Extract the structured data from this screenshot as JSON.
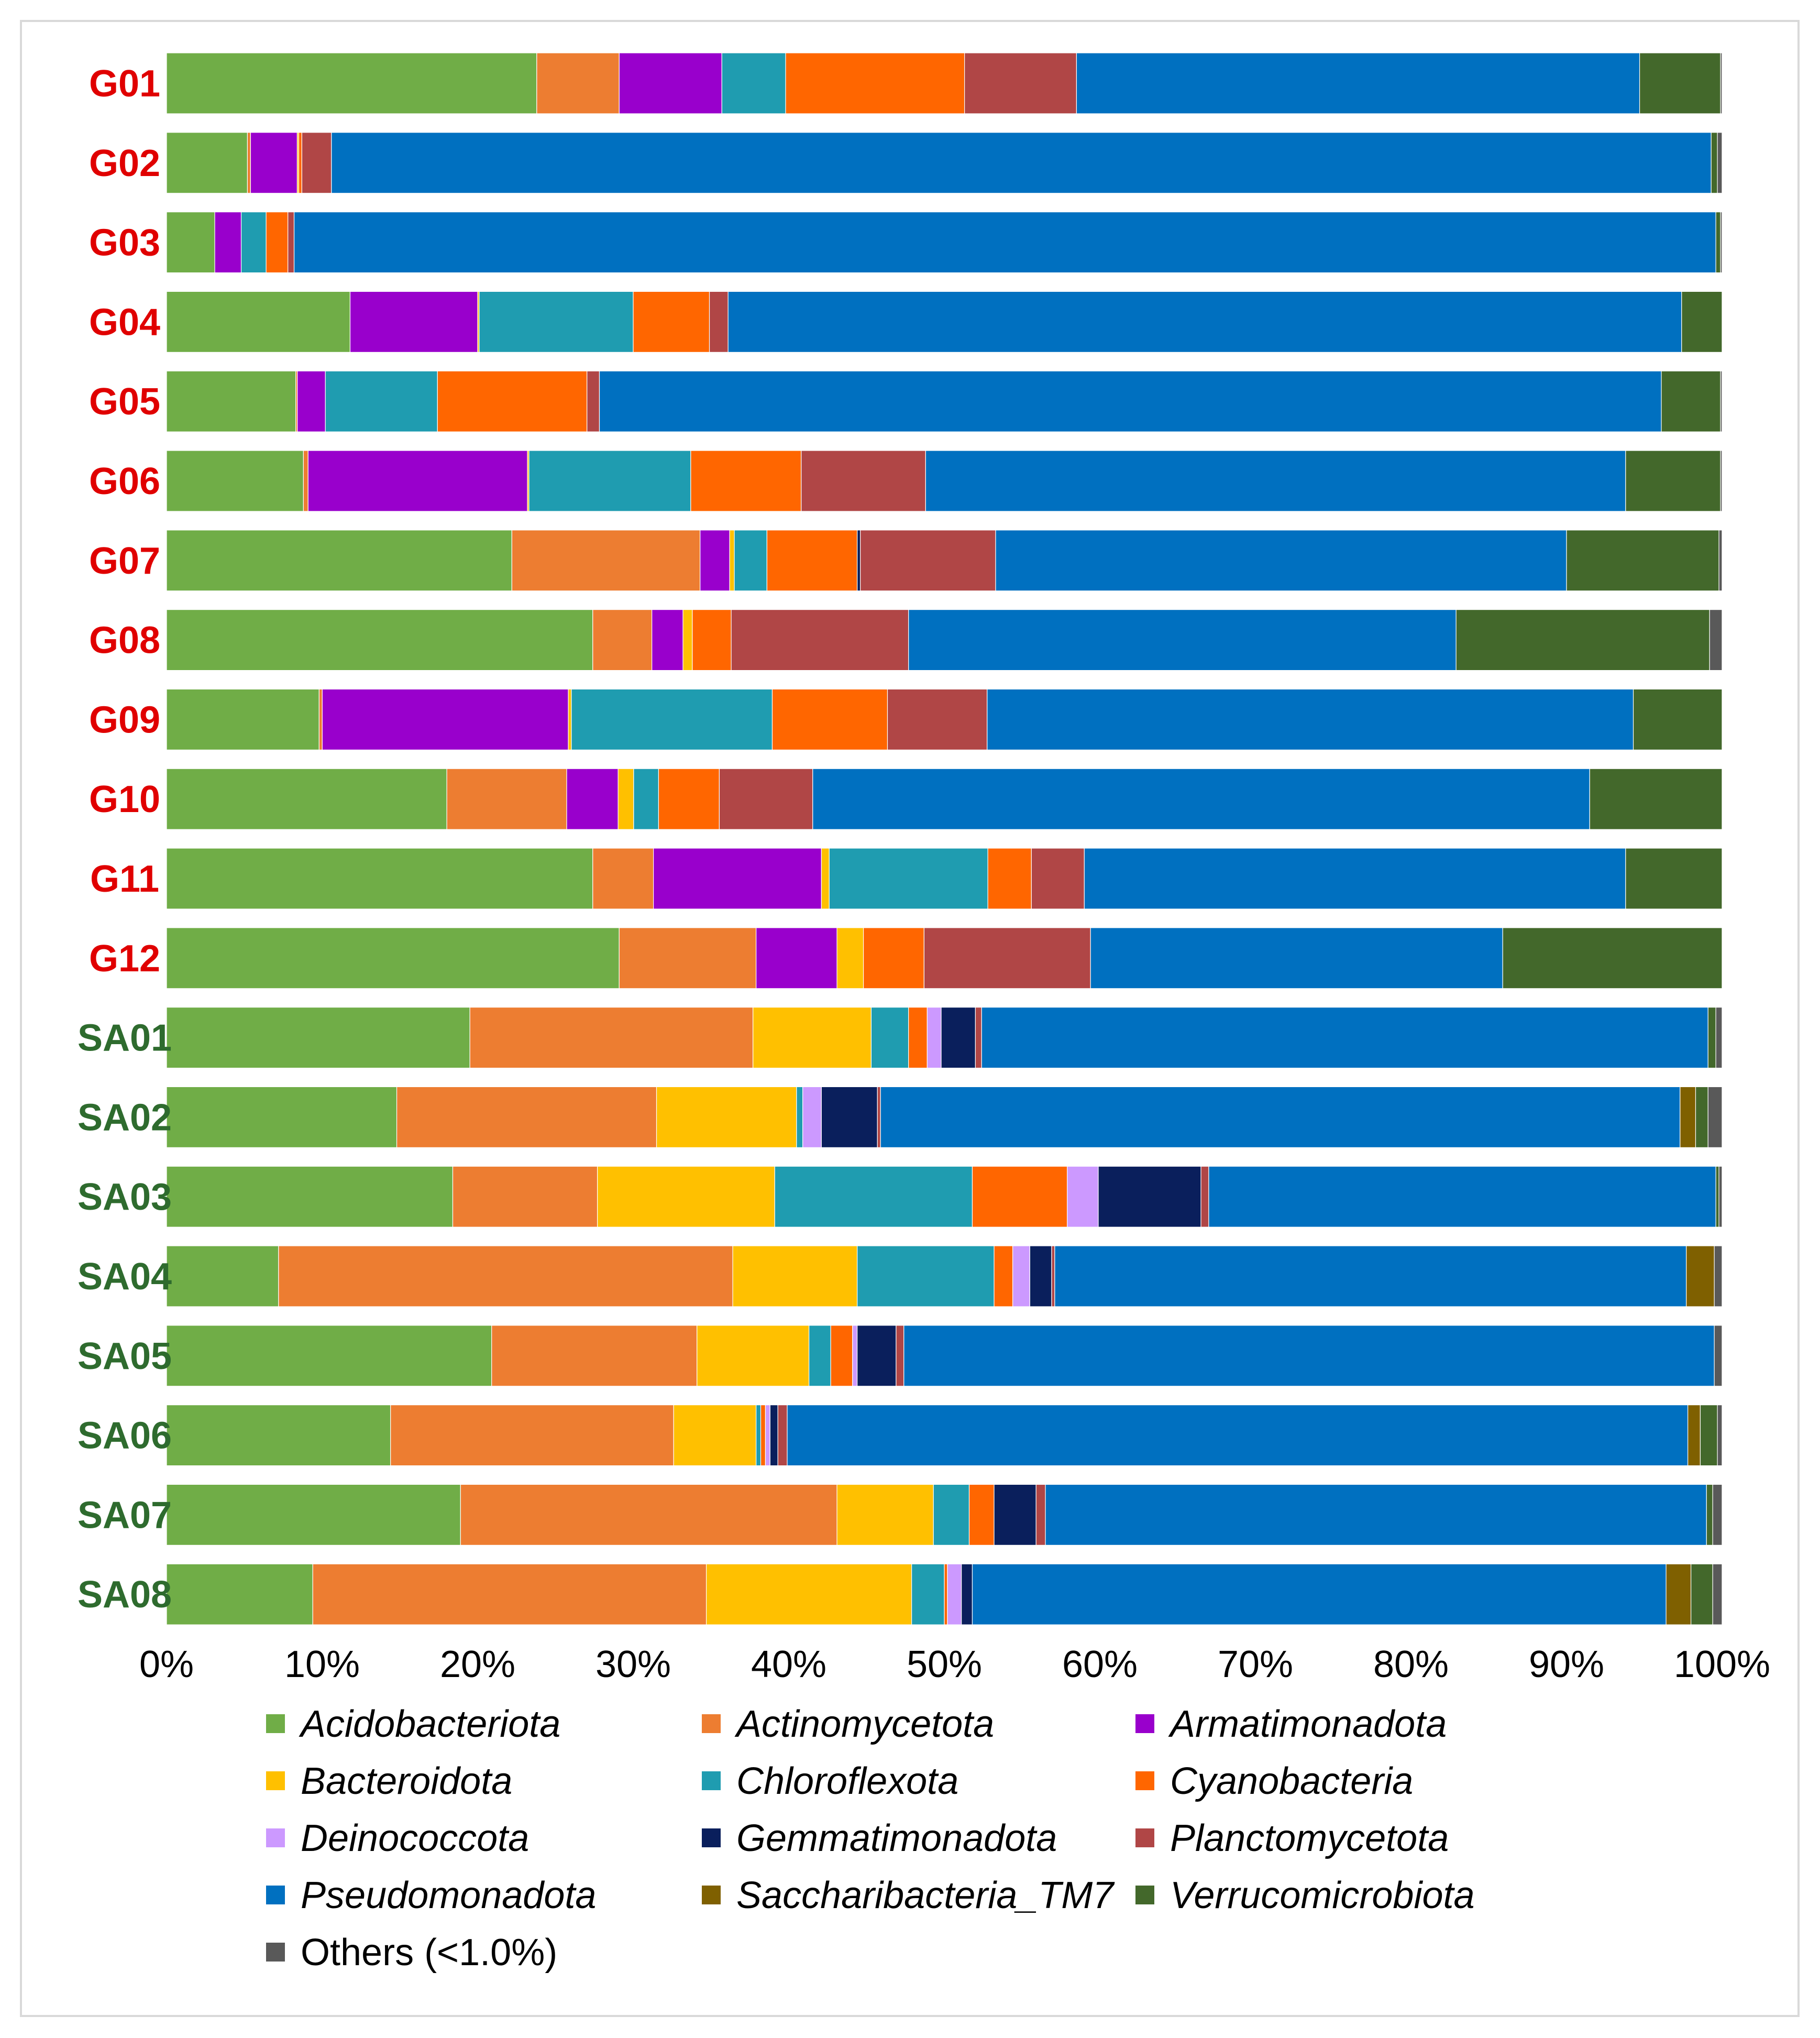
{
  "chart_data": {
    "type": "bar",
    "orientation": "horizontal",
    "stacked": true,
    "title": "",
    "xlabel": "",
    "ylabel": "",
    "xlim": [
      0,
      100
    ],
    "x_ticks": [
      "0%",
      "10%",
      "20%",
      "30%",
      "40%",
      "50%",
      "60%",
      "70%",
      "80%",
      "90%",
      "100%"
    ],
    "grid": false,
    "legend_position": "bottom",
    "categories": [
      "G01",
      "G02",
      "G03",
      "G04",
      "G05",
      "G06",
      "G07",
      "G08",
      "G09",
      "G10",
      "G11",
      "G12",
      "SA01",
      "SA02",
      "SA03",
      "SA04",
      "SA05",
      "SA06",
      "SA07",
      "SA08"
    ],
    "category_colors": [
      "#e00000",
      "#e00000",
      "#e00000",
      "#e00000",
      "#e00000",
      "#e00000",
      "#e00000",
      "#e00000",
      "#e00000",
      "#e00000",
      "#e00000",
      "#e00000",
      "#2e6b2e",
      "#2e6b2e",
      "#2e6b2e",
      "#2e6b2e",
      "#2e6b2e",
      "#2e6b2e",
      "#2e6b2e",
      "#2e6b2e"
    ],
    "series": [
      {
        "name": "Acidobacteriota",
        "italic": true,
        "color": "#70ad47",
        "values": [
          23.8,
          5.2,
          3.1,
          11.8,
          8.3,
          8.8,
          22.2,
          27.4,
          9.8,
          18.0,
          27.4,
          29.1,
          19.5,
          14.8,
          18.4,
          7.2,
          20.9,
          14.4,
          18.9,
          9.4
        ]
      },
      {
        "name": "Actinomycetota",
        "italic": true,
        "color": "#ed7d31",
        "values": [
          5.3,
          0.2,
          0.0,
          0.0,
          0.1,
          0.3,
          12.1,
          3.8,
          0.2,
          7.7,
          3.9,
          8.8,
          18.2,
          16.7,
          9.3,
          29.2,
          13.2,
          18.2,
          24.2,
          25.3
        ]
      },
      {
        "name": "Armatimonadota",
        "italic": true,
        "color": "#9900cc",
        "values": [
          6.6,
          3.0,
          1.7,
          8.2,
          1.8,
          14.1,
          1.9,
          2.0,
          15.8,
          3.3,
          10.8,
          5.2,
          0.0,
          0.0,
          0.0,
          0.0,
          0.0,
          0.0,
          0.0,
          0.0
        ]
      },
      {
        "name": "Bacteroidota",
        "italic": true,
        "color": "#ffc000",
        "values": [
          0.0,
          0.1,
          0.0,
          0.1,
          0.0,
          0.1,
          0.3,
          0.6,
          0.2,
          1.0,
          0.5,
          1.7,
          7.6,
          9.0,
          11.4,
          8.0,
          7.2,
          5.3,
          6.2,
          13.2
        ]
      },
      {
        "name": "Chloroflexota",
        "italic": true,
        "color": "#1f9cb0",
        "values": [
          4.1,
          0.0,
          1.6,
          9.9,
          7.2,
          10.4,
          2.1,
          0.0,
          12.9,
          1.6,
          10.2,
          0.0,
          2.4,
          0.4,
          12.7,
          8.8,
          1.4,
          0.3,
          2.3,
          2.1
        ]
      },
      {
        "name": "Cyanobacteria",
        "italic": true,
        "color": "#ff6600",
        "values": [
          11.5,
          0.2,
          1.4,
          4.9,
          9.6,
          7.1,
          5.8,
          2.5,
          7.4,
          3.9,
          2.8,
          3.9,
          1.2,
          0.0,
          6.1,
          1.2,
          1.4,
          0.3,
          1.6,
          0.2
        ]
      },
      {
        "name": "Deinococcota",
        "italic": true,
        "color": "#cc99ff",
        "values": [
          0.0,
          0.0,
          0.0,
          0.0,
          0.0,
          0.0,
          0.0,
          0.0,
          0.0,
          0.0,
          0.0,
          0.0,
          0.9,
          1.2,
          2.0,
          1.1,
          0.3,
          0.3,
          0.0,
          0.9
        ]
      },
      {
        "name": "Gemmatimonadota",
        "italic": true,
        "color": "#0a1f5c",
        "values": [
          0.0,
          0.0,
          0.0,
          0.0,
          0.0,
          0.0,
          0.2,
          0.0,
          0.0,
          0.0,
          0.0,
          0.0,
          2.2,
          3.6,
          6.6,
          1.4,
          2.5,
          0.5,
          2.7,
          0.7
        ]
      },
      {
        "name": "Planctomycetota",
        "italic": true,
        "color": "#b04646",
        "values": [
          7.2,
          1.9,
          0.4,
          1.2,
          0.8,
          8.0,
          8.7,
          11.4,
          6.4,
          6.0,
          3.4,
          10.7,
          0.4,
          0.2,
          0.5,
          0.2,
          0.5,
          0.6,
          0.6,
          0.0
        ]
      },
      {
        "name": "Pseudomonadota",
        "italic": true,
        "color": "#0070c0",
        "values": [
          36.2,
          88.7,
          91.4,
          61.3,
          68.2,
          45.0,
          36.7,
          35.2,
          41.5,
          49.9,
          34.8,
          26.5,
          46.7,
          51.4,
          32.6,
          40.6,
          52.1,
          57.9,
          42.5,
          44.6
        ]
      },
      {
        "name": "Saccharibacteria_TM7",
        "italic": true,
        "color": "#7f6000",
        "values": [
          0.0,
          0.0,
          0.0,
          0.0,
          0.0,
          0.0,
          0.0,
          0.0,
          0.0,
          0.0,
          0.0,
          0.0,
          0.0,
          1.0,
          0.0,
          1.8,
          0.0,
          0.8,
          0.0,
          1.6
        ]
      },
      {
        "name": "Verrucomicrobiota",
        "italic": true,
        "color": "#43682b",
        "values": [
          5.2,
          0.4,
          0.3,
          2.6,
          3.8,
          6.1,
          9.8,
          16.3,
          5.7,
          8.5,
          6.2,
          14.1,
          0.5,
          0.8,
          0.2,
          0.0,
          0.0,
          1.1,
          0.4,
          1.4
        ]
      },
      {
        "name": "Others (<1.0%)",
        "italic": false,
        "color": "#595959",
        "values": [
          0.1,
          0.3,
          0.1,
          0.0,
          0.1,
          0.1,
          0.2,
          0.8,
          0.0,
          0.0,
          0.0,
          0.0,
          0.4,
          0.9,
          0.2,
          0.5,
          0.5,
          0.3,
          0.6,
          0.6
        ]
      }
    ]
  }
}
